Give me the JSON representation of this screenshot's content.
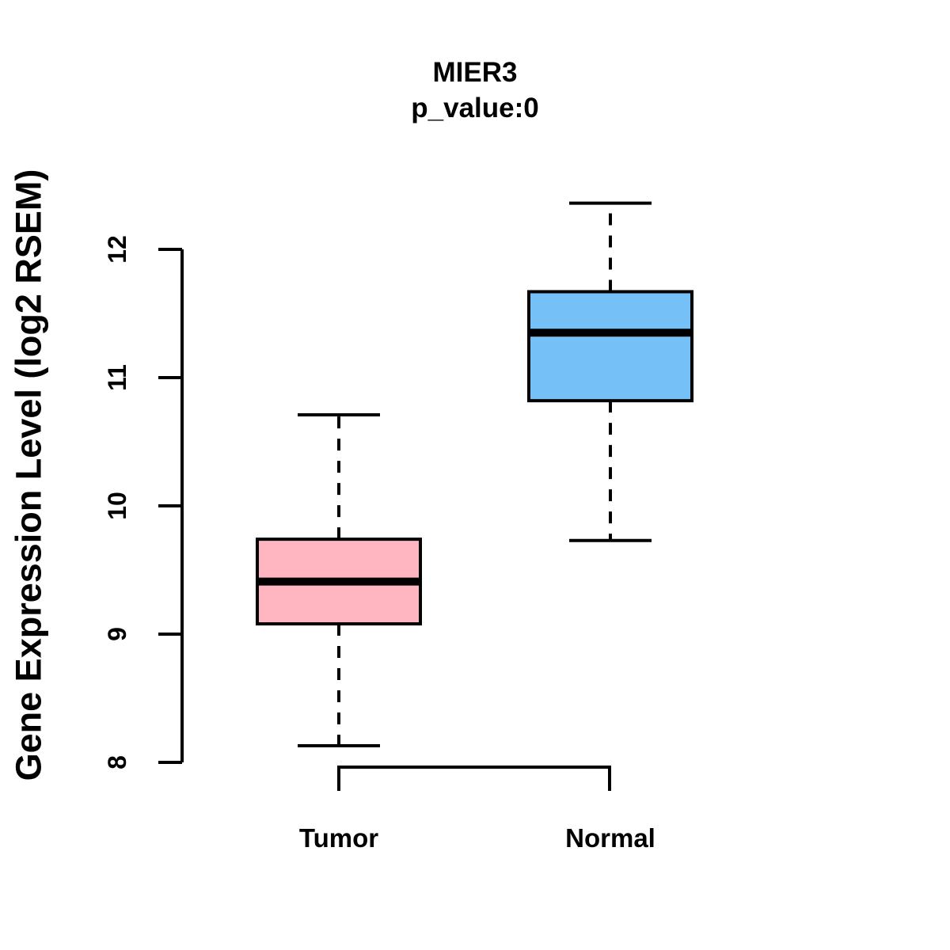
{
  "figure": {
    "background_color": "#FFFFFF",
    "text_color": "#000000"
  },
  "chart_data": {
    "type": "boxplot",
    "title": "MIER3",
    "subtitle": "p_value:0",
    "ylabel": "Gene Expression Level (log2 RSEM)",
    "xlabel": "",
    "categories": [
      "Tumor",
      "Normal"
    ],
    "yticks": [
      8,
      9,
      10,
      11,
      12
    ],
    "ylim": [
      7.9,
      12.45
    ],
    "grid": false,
    "legend": "none",
    "box_style": {
      "border_color": "#000000",
      "median_color": "#000000",
      "whisker_style": "dashed"
    },
    "series": [
      {
        "name": "Tumor",
        "fill_color": "#FFB6C1",
        "whisker_low": 8.13,
        "q1": 9.08,
        "median": 9.41,
        "q3": 9.74,
        "whisker_high": 10.71
      },
      {
        "name": "Normal",
        "fill_color": "#74C0F7",
        "whisker_low": 9.73,
        "q1": 10.82,
        "median": 11.35,
        "q3": 11.67,
        "whisker_high": 12.36
      }
    ]
  }
}
